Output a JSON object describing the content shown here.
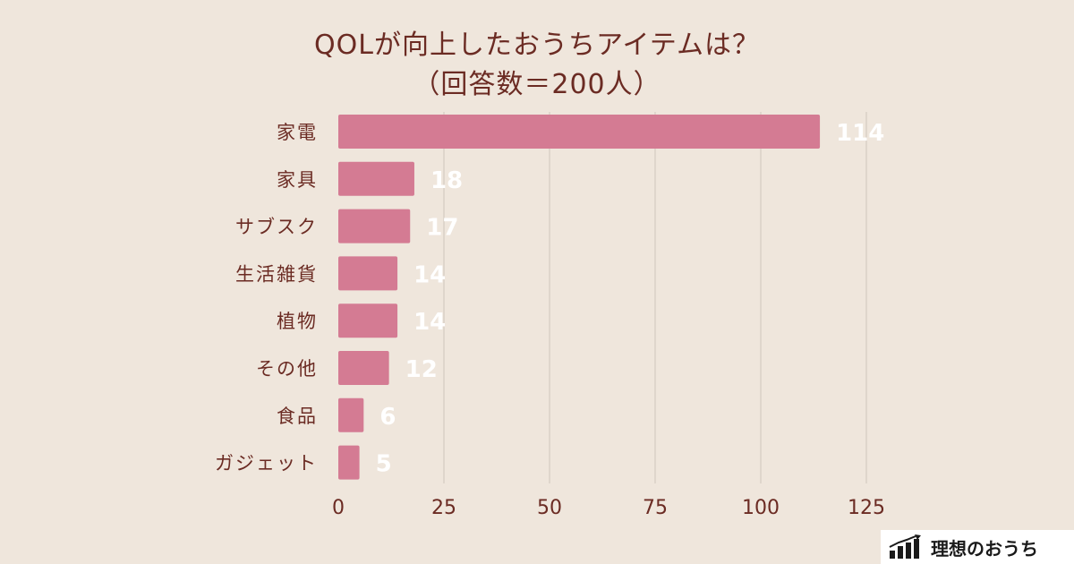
{
  "chart_data": {
    "type": "bar",
    "orientation": "horizontal",
    "title": "QOLが向上したおうちアイテムは？",
    "subtitle": "（回答数＝200人）",
    "categories": [
      "家電",
      "家具",
      "サブスク",
      "生活雑貨",
      "植物",
      "その他",
      "食品",
      "ガジェット"
    ],
    "values": [
      114,
      18,
      17,
      14,
      14,
      12,
      6,
      5
    ],
    "data_labels": [
      "114",
      "18",
      "17",
      "14",
      "14",
      "12",
      "6",
      "5"
    ],
    "xlim": [
      0,
      125
    ],
    "x_ticks": [
      0,
      25,
      50,
      75,
      100,
      125
    ],
    "x_tick_labels": [
      "0",
      "25",
      "50",
      "75",
      "100",
      "125"
    ],
    "xlabel": "",
    "ylabel": "",
    "grid": true,
    "legend": "none"
  },
  "colors": {
    "background": "#efe6dc",
    "bar": "#d47b93",
    "text": "#6b2b23",
    "grid": "#cfc6bd",
    "label": "#ffffff"
  },
  "brand": {
    "name": "理想のおうち",
    "icon": "bar-chart-icon"
  }
}
